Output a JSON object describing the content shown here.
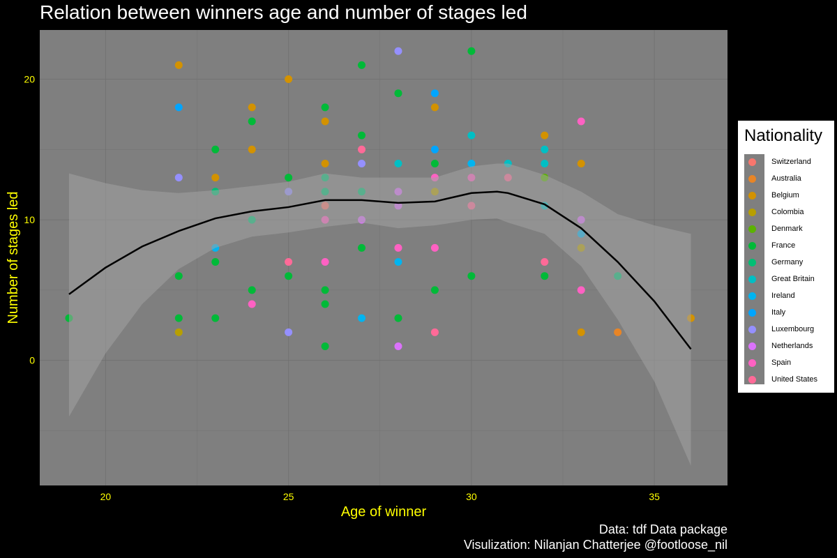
{
  "title": "Relation between winners age and number of stages led",
  "caption": {
    "line1": "Data: tdf Data package",
    "line2": "Visulization: Nilanjan Chatterjee @footloose_nil"
  },
  "legend": {
    "title": "Nationality",
    "items": [
      {
        "label": " Switzerland",
        "color": "#F8766D"
      },
      {
        "label": "Australia",
        "color": "#E88526"
      },
      {
        "label": "Belgium",
        "color": "#D39200"
      },
      {
        "label": "Colombia",
        "color": "#B79F00"
      },
      {
        "label": "Denmark",
        "color": "#5BB300"
      },
      {
        "label": "France",
        "color": "#00BA38"
      },
      {
        "label": "Germany",
        "color": "#00BF74"
      },
      {
        "label": "Great Britain",
        "color": "#00BFC4"
      },
      {
        "label": "Ireland",
        "color": "#00B4F0"
      },
      {
        "label": "Italy",
        "color": "#00A5FF"
      },
      {
        "label": "Luxembourg",
        "color": "#9590FF"
      },
      {
        "label": "Netherlands",
        "color": "#DB72FB"
      },
      {
        "label": "Spain",
        "color": "#FF61C3"
      },
      {
        "label": "United States",
        "color": "#FF6A98"
      }
    ]
  },
  "chart_data": {
    "type": "scatter",
    "title": "Relation between winners age and number of stages led",
    "xlabel": "Age of winner",
    "ylabel": "Number of stages led",
    "xlim": [
      18.2,
      37
    ],
    "ylim": [
      -8.9,
      23.5
    ],
    "xticks": [
      20,
      25,
      30,
      35
    ],
    "yticks": [
      0,
      10,
      20
    ],
    "grid": true,
    "legend_position": "right",
    "colors": {
      "panel": "#7f7f7f",
      "grid": "#727272",
      "ribbon": "#a2a2a2",
      "axis_text": "#ffff00",
      "smooth_line": "#000000"
    },
    "points": [
      {
        "x": 19,
        "y": 3,
        "c": "France"
      },
      {
        "x": 22,
        "y": 21,
        "c": "Belgium"
      },
      {
        "x": 22,
        "y": 18,
        "c": "Italy"
      },
      {
        "x": 22,
        "y": 13,
        "c": "Luxembourg"
      },
      {
        "x": 22,
        "y": 6,
        "c": "France"
      },
      {
        "x": 22,
        "y": 3,
        "c": "France"
      },
      {
        "x": 22,
        "y": 2,
        "c": "Colombia"
      },
      {
        "x": 23,
        "y": 15,
        "c": "France"
      },
      {
        "x": 23,
        "y": 13,
        "c": "Belgium"
      },
      {
        "x": 23,
        "y": 12,
        "c": "Germany"
      },
      {
        "x": 23,
        "y": 8,
        "c": "Ireland"
      },
      {
        "x": 23,
        "y": 7,
        "c": "France"
      },
      {
        "x": 23,
        "y": 3,
        "c": "France"
      },
      {
        "x": 24,
        "y": 18,
        "c": "Belgium"
      },
      {
        "x": 24,
        "y": 17,
        "c": "France"
      },
      {
        "x": 24,
        "y": 15,
        "c": "Belgium"
      },
      {
        "x": 24,
        "y": 10,
        "c": "Germany"
      },
      {
        "x": 24,
        "y": 5,
        "c": "France"
      },
      {
        "x": 24,
        "y": 4,
        "c": "Spain"
      },
      {
        "x": 25,
        "y": 20,
        "c": "Belgium"
      },
      {
        "x": 25,
        "y": 13,
        "c": "France"
      },
      {
        "x": 25,
        "y": 12,
        "c": "Luxembourg"
      },
      {
        "x": 25,
        "y": 7,
        "c": "United States"
      },
      {
        "x": 25,
        "y": 6,
        "c": "France"
      },
      {
        "x": 25,
        "y": 2,
        "c": "Luxembourg"
      },
      {
        "x": 26,
        "y": 18,
        "c": "France"
      },
      {
        "x": 26,
        "y": 17,
        "c": "Belgium"
      },
      {
        "x": 26,
        "y": 14,
        "c": "Belgium"
      },
      {
        "x": 26,
        "y": 13,
        "c": "Germany"
      },
      {
        "x": 26,
        "y": 12,
        "c": "Germany"
      },
      {
        "x": 26,
        "y": 11,
        "c": " Switzerland"
      },
      {
        "x": 26,
        "y": 10,
        "c": "Spain"
      },
      {
        "x": 26,
        "y": 7,
        "c": "Spain"
      },
      {
        "x": 26,
        "y": 5,
        "c": "France"
      },
      {
        "x": 26,
        "y": 4,
        "c": "France"
      },
      {
        "x": 26,
        "y": 1,
        "c": "France"
      },
      {
        "x": 27,
        "y": 21,
        "c": "France"
      },
      {
        "x": 27,
        "y": 16,
        "c": "France"
      },
      {
        "x": 27,
        "y": 15,
        "c": "United States"
      },
      {
        "x": 27,
        "y": 14,
        "c": "Luxembourg"
      },
      {
        "x": 27,
        "y": 12,
        "c": "Germany"
      },
      {
        "x": 27,
        "y": 10,
        "c": "Netherlands"
      },
      {
        "x": 27,
        "y": 8,
        "c": "France"
      },
      {
        "x": 27,
        "y": 3,
        "c": "Ireland"
      },
      {
        "x": 28,
        "y": 22,
        "c": "Luxembourg"
      },
      {
        "x": 28,
        "y": 19,
        "c": "France"
      },
      {
        "x": 28,
        "y": 14,
        "c": "Great Britain"
      },
      {
        "x": 28,
        "y": 12,
        "c": "Netherlands"
      },
      {
        "x": 28,
        "y": 11,
        "c": "Netherlands"
      },
      {
        "x": 28,
        "y": 8,
        "c": "Spain"
      },
      {
        "x": 28,
        "y": 7,
        "c": "Ireland"
      },
      {
        "x": 28,
        "y": 3,
        "c": "France"
      },
      {
        "x": 28,
        "y": 1,
        "c": "Netherlands"
      },
      {
        "x": 29,
        "y": 19,
        "c": "Italy"
      },
      {
        "x": 29,
        "y": 18,
        "c": "Belgium"
      },
      {
        "x": 29,
        "y": 15,
        "c": "Italy"
      },
      {
        "x": 29,
        "y": 14,
        "c": "France"
      },
      {
        "x": 29,
        "y": 13,
        "c": "Spain"
      },
      {
        "x": 29,
        "y": 12,
        "c": "Colombia"
      },
      {
        "x": 29,
        "y": 8,
        "c": "Spain"
      },
      {
        "x": 29,
        "y": 5,
        "c": "France"
      },
      {
        "x": 29,
        "y": 2,
        "c": "United States"
      },
      {
        "x": 30,
        "y": 22,
        "c": "France"
      },
      {
        "x": 30,
        "y": 16,
        "c": "Great Britain"
      },
      {
        "x": 30,
        "y": 14,
        "c": "Ireland"
      },
      {
        "x": 30,
        "y": 13,
        "c": "Spain"
      },
      {
        "x": 30,
        "y": 11,
        "c": "United States"
      },
      {
        "x": 30,
        "y": 6,
        "c": "France"
      },
      {
        "x": 31,
        "y": 14,
        "c": "Great Britain"
      },
      {
        "x": 31,
        "y": 13,
        "c": "United States"
      },
      {
        "x": 32,
        "y": 16,
        "c": "Belgium"
      },
      {
        "x": 32,
        "y": 15,
        "c": "Great Britain"
      },
      {
        "x": 32,
        "y": 14,
        "c": "Great Britain"
      },
      {
        "x": 32,
        "y": 13,
        "c": "Denmark"
      },
      {
        "x": 32,
        "y": 11,
        "c": "Great Britain"
      },
      {
        "x": 32,
        "y": 7,
        "c": "United States"
      },
      {
        "x": 32,
        "y": 6,
        "c": "France"
      },
      {
        "x": 33,
        "y": 17,
        "c": "Spain"
      },
      {
        "x": 33,
        "y": 14,
        "c": "Belgium"
      },
      {
        "x": 33,
        "y": 10,
        "c": "Netherlands"
      },
      {
        "x": 33,
        "y": 9,
        "c": "Ireland"
      },
      {
        "x": 33,
        "y": 8,
        "c": "Colombia"
      },
      {
        "x": 33,
        "y": 5,
        "c": "Spain"
      },
      {
        "x": 33,
        "y": 2,
        "c": "Belgium"
      },
      {
        "x": 34,
        "y": 6,
        "c": "Germany"
      },
      {
        "x": 34,
        "y": 2,
        "c": "Australia"
      },
      {
        "x": 36,
        "y": 3,
        "c": "Belgium"
      }
    ],
    "smooth": {
      "x": [
        19,
        20,
        21,
        22,
        23,
        24,
        25,
        26,
        27,
        28,
        29,
        30,
        30.7,
        31,
        32,
        33,
        34,
        35,
        36
      ],
      "y": [
        4.7,
        6.6,
        8.1,
        9.2,
        10.1,
        10.6,
        10.9,
        11.4,
        11.4,
        11.2,
        11.3,
        11.9,
        12.0,
        11.9,
        11.1,
        9.4,
        7.0,
        4.2,
        0.8
      ],
      "lo": [
        -4.0,
        0.5,
        4.0,
        6.5,
        8.0,
        8.8,
        9.1,
        9.5,
        9.8,
        9.4,
        9.6,
        10.0,
        10.1,
        9.8,
        9.0,
        6.7,
        2.9,
        -1.5,
        -7.5
      ],
      "hi": [
        13.3,
        12.6,
        12.1,
        11.9,
        12.1,
        12.4,
        12.7,
        13.3,
        13.0,
        13.0,
        13.0,
        13.8,
        14.0,
        14.0,
        13.2,
        12.0,
        10.4,
        9.6,
        9.0
      ]
    }
  }
}
